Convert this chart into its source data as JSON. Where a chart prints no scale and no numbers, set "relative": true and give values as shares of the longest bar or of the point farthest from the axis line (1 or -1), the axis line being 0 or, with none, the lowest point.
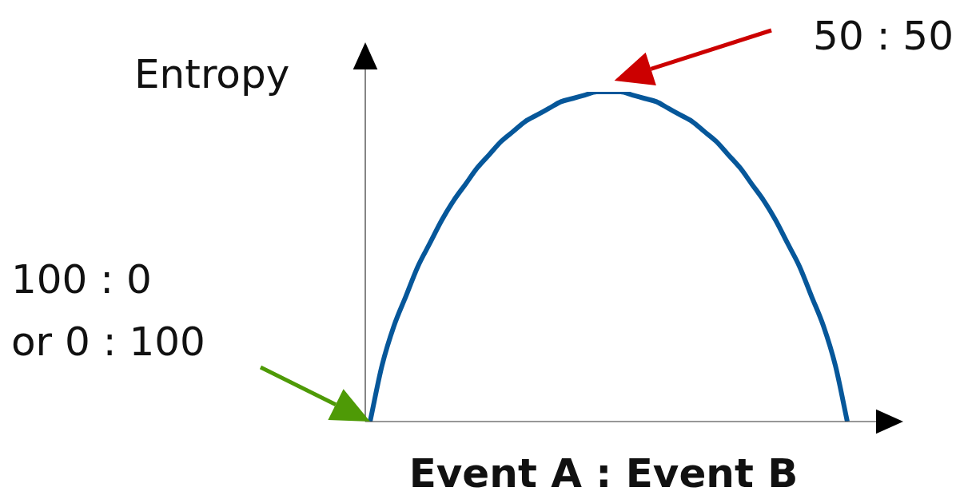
{
  "chart_data": {
    "type": "line",
    "relative": true,
    "ylabel": "Entropy",
    "xlabel": "Event A : Event B",
    "categories": [
      null,
      null,
      null,
      null,
      null,
      null,
      null,
      null,
      null,
      null,
      null,
      null,
      null,
      null,
      null,
      null,
      null,
      null,
      null,
      null,
      null,
      null,
      null,
      null,
      null,
      null,
      null,
      null,
      null,
      null,
      null,
      null,
      null,
      null,
      null,
      null,
      null,
      null,
      null,
      null,
      null
    ],
    "series": [
      {
        "color": "#06579a",
        "values": [
          0,
          0.17,
          0.29,
          0.38,
          0.47,
          0.54,
          0.61,
          0.67,
          0.72,
          0.77,
          0.81,
          0.85,
          0.88,
          0.91,
          0.93,
          0.95,
          0.97,
          0.98,
          0.99,
          1.0,
          1.0,
          1.0,
          0.99,
          0.98,
          0.97,
          0.95,
          0.93,
          0.91,
          0.88,
          0.85,
          0.81,
          0.77,
          0.72,
          0.67,
          0.61,
          0.54,
          0.47,
          0.38,
          0.29,
          0.17,
          0
        ]
      }
    ],
    "annotations": [
      "50 : 50",
      "100 : 0\nor 0 : 100"
    ],
    "marker": "none",
    "line_style": "solid",
    "legend": false
  }
}
